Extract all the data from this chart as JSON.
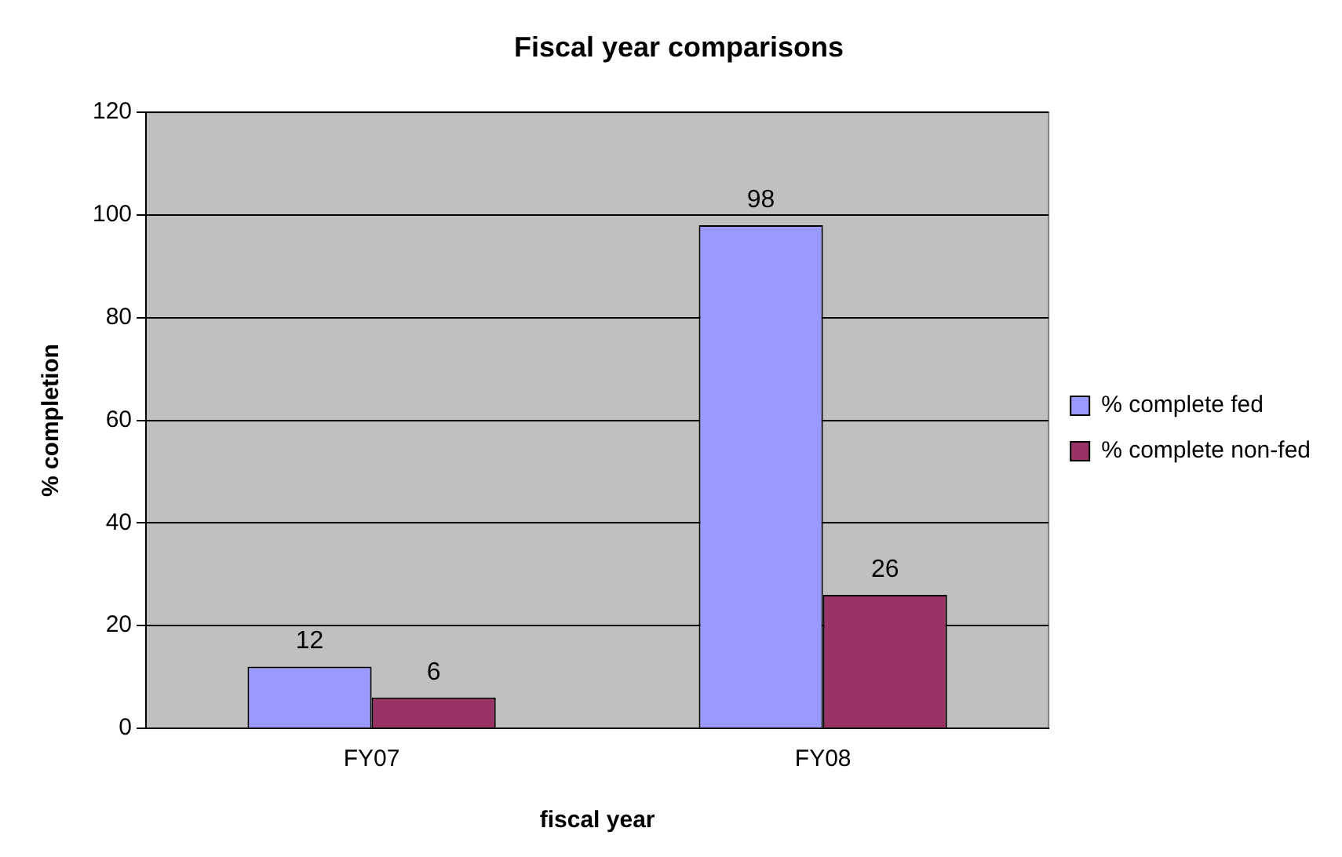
{
  "chart_data": {
    "type": "bar",
    "title": "Fiscal year comparisons",
    "xlabel": "fiscal year",
    "ylabel": "% completion",
    "categories": [
      "FY07",
      "FY08"
    ],
    "series": [
      {
        "name": "% complete fed",
        "color": "#9999ff",
        "values": [
          12,
          98
        ]
      },
      {
        "name": "% complete non-fed",
        "color": "#993366",
        "values": [
          6,
          26
        ]
      }
    ],
    "ylim": [
      0,
      120
    ],
    "yticks": [
      0,
      20,
      40,
      60,
      80,
      100,
      120
    ],
    "grid": "y",
    "legend": "right",
    "data_labels": true
  }
}
